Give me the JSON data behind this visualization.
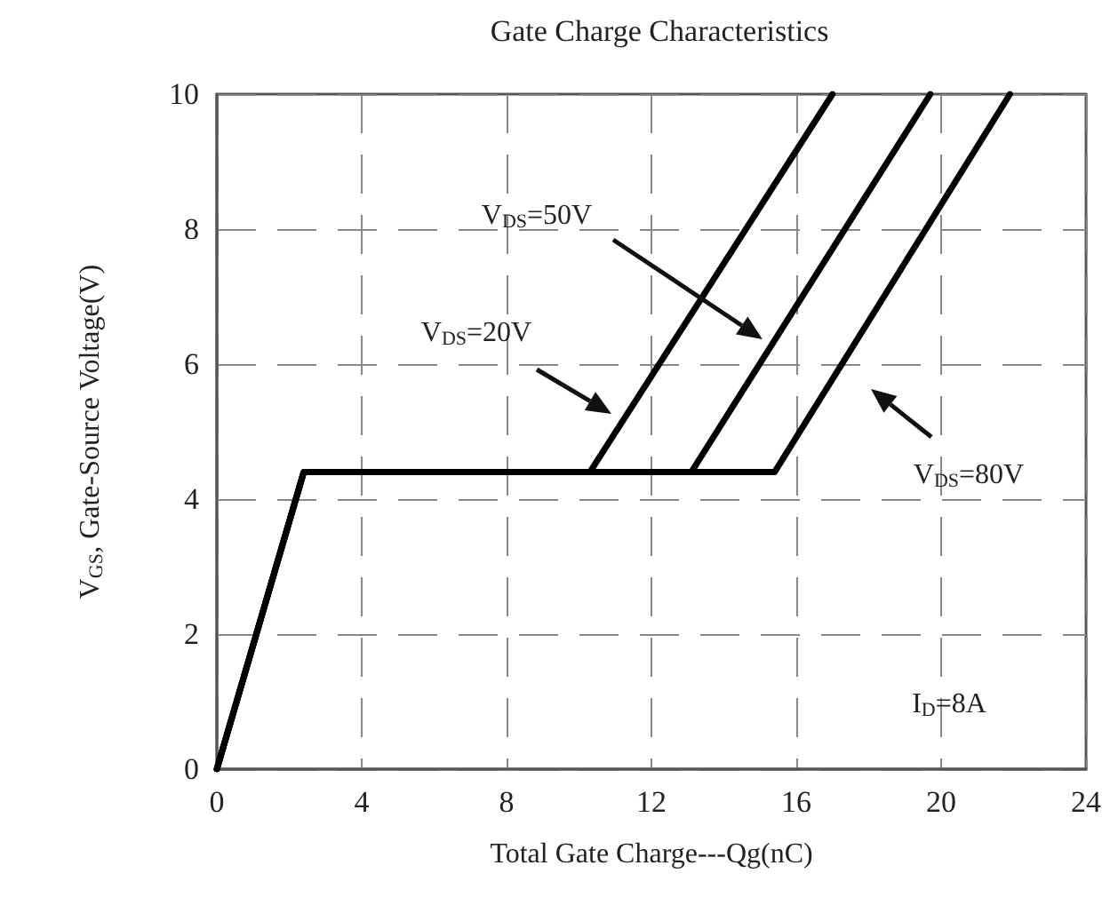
{
  "chart_data": {
    "type": "line",
    "title": "Gate Charge Characteristics",
    "xlabel": "Total Gate Charge---Qg(nC)",
    "ylabel": "V$_{GS}$, Gate-Source Voltage(V)",
    "xlim": [
      0,
      24
    ],
    "xticks": [
      0,
      4,
      8,
      12,
      16,
      20,
      24
    ],
    "ylim": [
      0,
      10
    ],
    "yticks": [
      0,
      2,
      4,
      6,
      8,
      10
    ],
    "grid": true,
    "marker": "none",
    "line_style": "solid",
    "series": [
      {
        "color": "#000000",
        "x": [
          0,
          2.4,
          10.3,
          17.0
        ],
        "values": [
          0,
          4.4,
          4.4,
          10
        ]
      },
      {
        "color": "#000000",
        "x": [
          0,
          2.4,
          13.1,
          19.7
        ],
        "values": [
          0,
          4.4,
          4.4,
          10
        ]
      },
      {
        "color": "#000000",
        "x": [
          0,
          2.4,
          15.4,
          21.9
        ],
        "values": [
          0,
          4.4,
          4.4,
          10
        ]
      }
    ],
    "annotations": [
      "V$_{DS}$=20V",
      "V$_{DS}$=50V",
      "V$_{DS}$=80V",
      "I$_{D}$=8A"
    ]
  }
}
